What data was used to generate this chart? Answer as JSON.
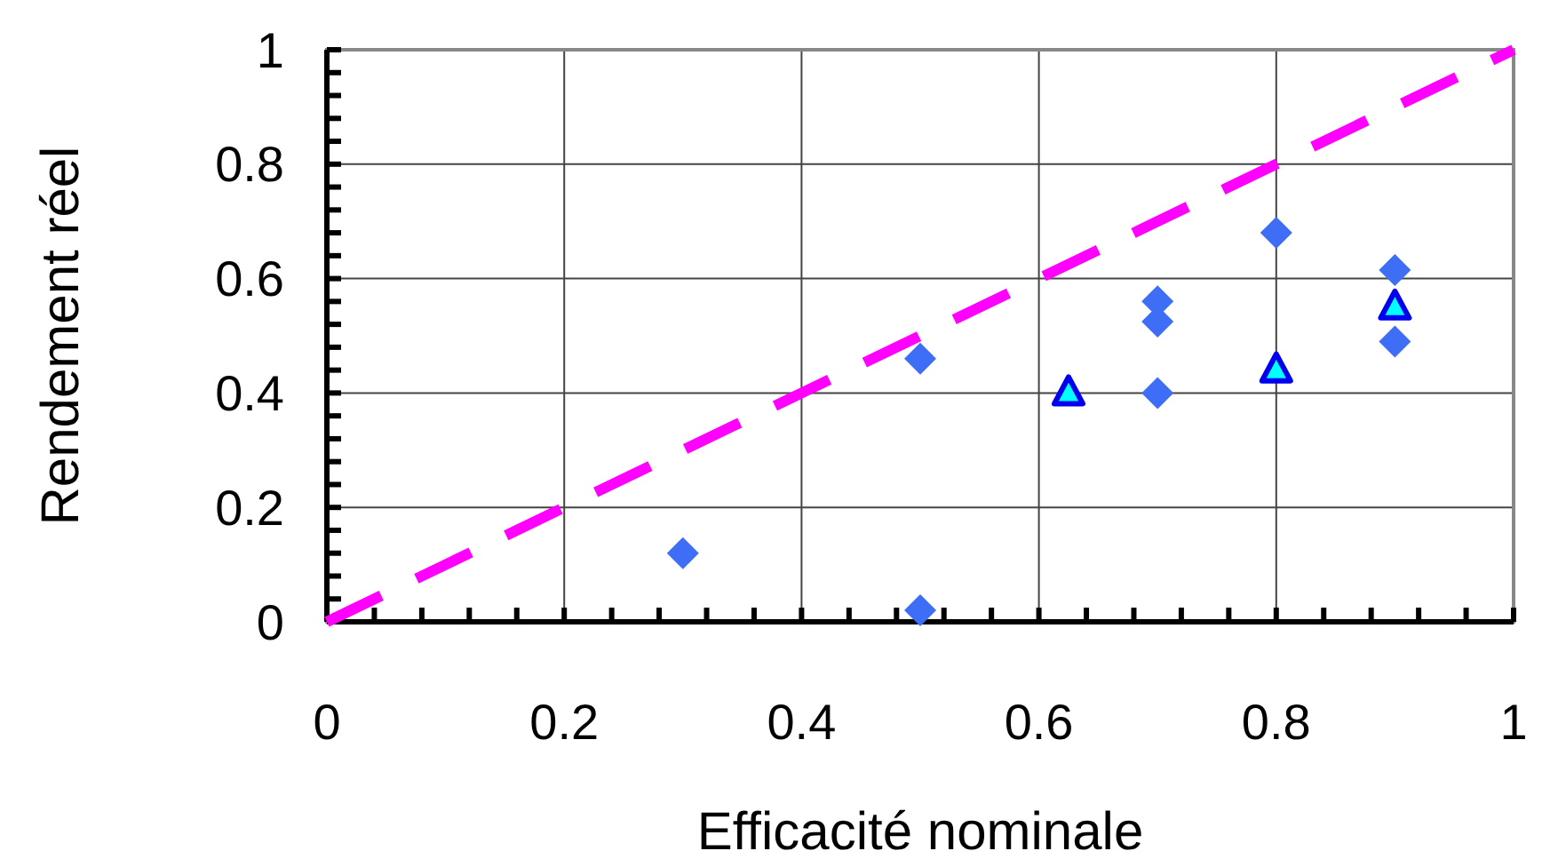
{
  "chart_data": {
    "type": "scatter",
    "xlabel": "Efficacité nominale",
    "ylabel": "Rendement réel",
    "xlim": [
      0,
      1
    ],
    "ylim": [
      0,
      1
    ],
    "xticks": [
      0,
      {
        "value": 0.04,
        "label": null
      },
      {
        "value": 0.08,
        "label": null
      },
      {
        "value": 0.12,
        "label": null
      },
      {
        "value": 0.16,
        "label": null
      },
      0.2,
      {
        "value": 0.24,
        "label": null
      },
      {
        "value": 0.28,
        "label": null
      },
      {
        "value": 0.32,
        "label": null
      },
      {
        "value": 0.36,
        "label": null
      },
      0.4,
      {
        "value": 0.44,
        "label": null
      },
      {
        "value": 0.48,
        "label": null
      },
      {
        "value": 0.52,
        "label": null
      },
      {
        "value": 0.56,
        "label": null
      },
      0.6,
      {
        "value": 0.64,
        "label": null
      },
      {
        "value": 0.68,
        "label": null
      },
      {
        "value": 0.72,
        "label": null
      },
      {
        "value": 0.76,
        "label": null
      },
      0.8,
      {
        "value": 0.84,
        "label": null
      },
      {
        "value": 0.88,
        "label": null
      },
      {
        "value": 0.92,
        "label": null
      },
      {
        "value": 0.96,
        "label": null
      },
      1
    ],
    "yticks": [
      0,
      {
        "value": 0.04,
        "label": null
      },
      {
        "value": 0.08,
        "label": null
      },
      {
        "value": 0.12,
        "label": null
      },
      {
        "value": 0.16,
        "label": null
      },
      0.2,
      {
        "value": 0.24,
        "label": null
      },
      {
        "value": 0.28,
        "label": null
      },
      {
        "value": 0.32,
        "label": null
      },
      {
        "value": 0.36,
        "label": null
      },
      0.4,
      {
        "value": 0.44,
        "label": null
      },
      {
        "value": 0.48,
        "label": null
      },
      {
        "value": 0.52,
        "label": null
      },
      {
        "value": 0.56,
        "label": null
      },
      0.6,
      {
        "value": 0.64,
        "label": null
      },
      {
        "value": 0.68,
        "label": null
      },
      {
        "value": 0.72,
        "label": null
      },
      {
        "value": 0.76,
        "label": null
      },
      0.8,
      {
        "value": 0.84,
        "label": null
      },
      {
        "value": 0.88,
        "label": null
      },
      {
        "value": 0.92,
        "label": null
      },
      {
        "value": 0.96,
        "label": null
      },
      1
    ],
    "grid": true,
    "series": [
      {
        "type": "line",
        "color": "#ff00ff",
        "x": [
          0,
          1
        ],
        "values": [
          0,
          1
        ],
        "line_style": "dashed"
      },
      {
        "color": "#3d6ef5",
        "marker": "diamond",
        "x": [
          0.3,
          0.5,
          0.5,
          0.7,
          0.7,
          0.7,
          0.8,
          0.9,
          0.9
        ],
        "values": [
          0.12,
          0.46,
          0.02,
          0.56,
          0.525,
          0.4,
          0.68,
          0.615,
          0.49
        ]
      },
      {
        "color": "#00ffff",
        "marker": "triangle",
        "x": [
          0.625,
          0.8,
          0.9
        ],
        "values": [
          0.4,
          0.44,
          0.55
        ]
      }
    ]
  }
}
